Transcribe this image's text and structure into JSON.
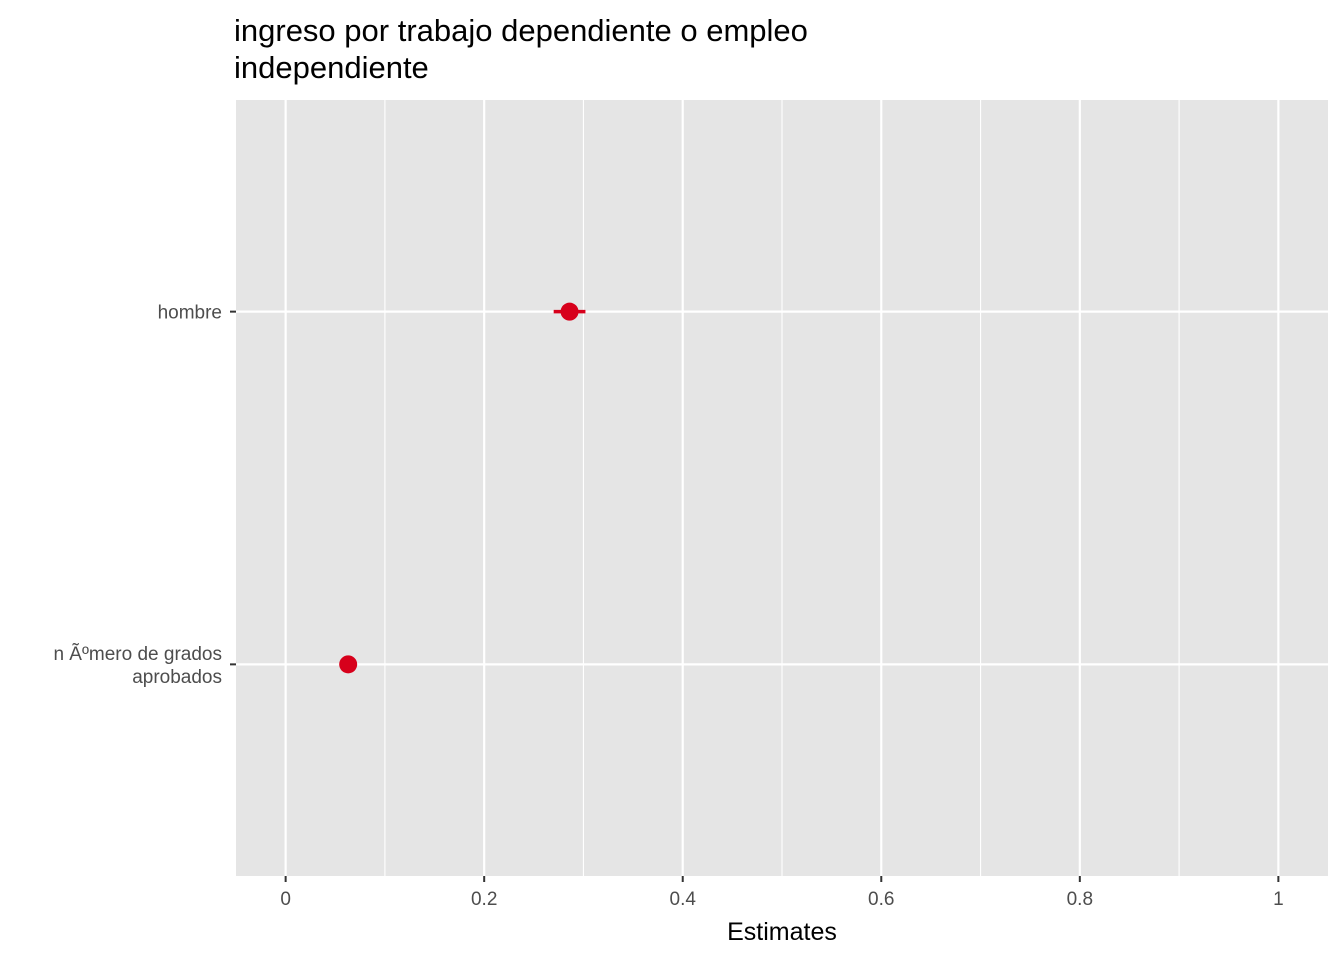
{
  "chart_data": {
    "type": "scatter",
    "title": [
      "ingreso por trabajo dependiente o empleo",
      "independiente"
    ],
    "xlabel": "Estimates",
    "ylabel": "",
    "xlim": [
      -0.05,
      1.05
    ],
    "x_ticks": [
      0,
      0.2,
      0.4,
      0.6,
      0.8,
      1
    ],
    "x_tick_labels": [
      "0",
      "0.2",
      "0.4",
      "0.6",
      "0.8",
      "1"
    ],
    "categories": [
      [
        "n Ãºmero de grados",
        "aprobados"
      ],
      [
        "hombre"
      ]
    ],
    "series": [
      {
        "values": [
          0.063,
          0.286
        ],
        "ci_low": [
          0.059,
          0.27
        ],
        "ci_high": [
          0.067,
          0.302
        ]
      }
    ],
    "point_color": "#d7001b",
    "panel_color": "#e5e5e5",
    "grid_color": "#ffffff",
    "grid": true
  }
}
